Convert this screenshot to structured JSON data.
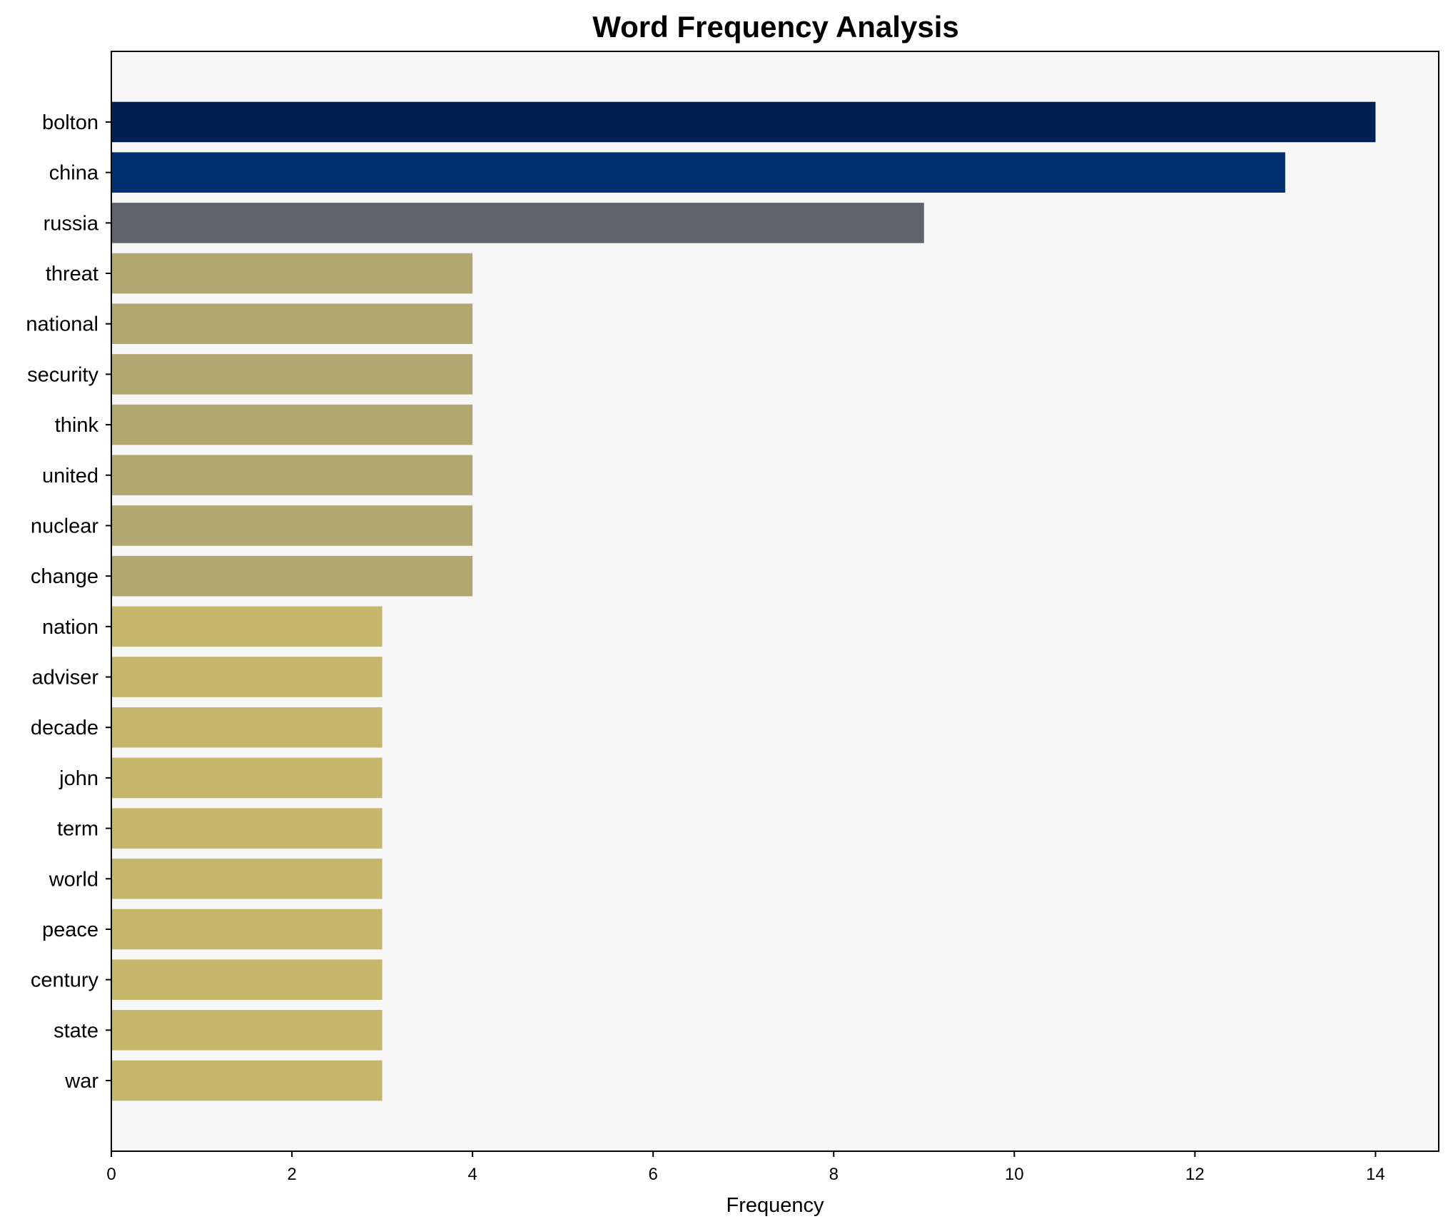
{
  "chart_data": {
    "type": "bar",
    "orientation": "horizontal",
    "title": "Word Frequency Analysis",
    "xlabel": "Frequency",
    "ylabel": "",
    "categories": [
      "bolton",
      "china",
      "russia",
      "threat",
      "national",
      "security",
      "think",
      "united",
      "nuclear",
      "change",
      "nation",
      "adviser",
      "decade",
      "john",
      "term",
      "world",
      "peace",
      "century",
      "state",
      "war"
    ],
    "values": [
      14,
      13,
      9,
      4,
      4,
      4,
      4,
      4,
      4,
      4,
      3,
      3,
      3,
      3,
      3,
      3,
      3,
      3,
      3,
      3
    ],
    "colors": [
      "#002051",
      "#00306f",
      "#5f636e",
      "#b1a770",
      "#b1a770",
      "#b1a770",
      "#b1a770",
      "#b1a770",
      "#b1a770",
      "#b1a770",
      "#c5b66b",
      "#c5b66b",
      "#c5b66b",
      "#c5b66b",
      "#c5b66b",
      "#c5b66b",
      "#c5b66b",
      "#c5b66b",
      "#c5b66b",
      "#c5b66b"
    ],
    "xlim": [
      0,
      14.7
    ],
    "xticks": [
      "0",
      "2",
      "4",
      "6",
      "8",
      "10",
      "12",
      "14"
    ],
    "grid": false,
    "background": "#f7f7f7"
  }
}
